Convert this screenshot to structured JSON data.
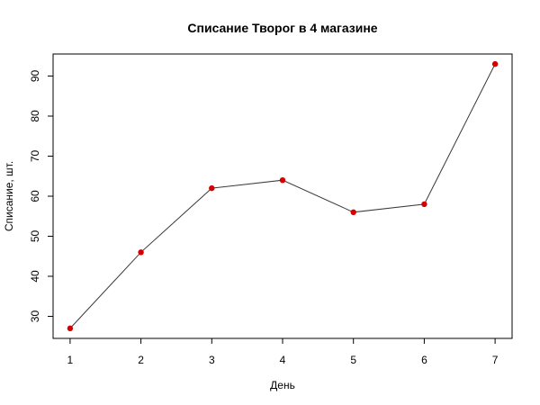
{
  "chart_data": {
    "type": "line",
    "title": "Списание Творог в 4 магазине",
    "xlabel": "День",
    "ylabel": "Списание, шт.",
    "x": [
      1,
      2,
      3,
      4,
      5,
      6,
      7
    ],
    "series": [
      {
        "values": [
          27,
          46,
          62,
          64,
          56,
          58,
          93
        ]
      }
    ],
    "xticks": [
      1,
      2,
      3,
      4,
      5,
      6,
      7
    ],
    "yticks": [
      30,
      40,
      50,
      60,
      70,
      80,
      90
    ],
    "xlim": [
      0.76,
      7.24
    ],
    "ylim": [
      24.5,
      95.5
    ],
    "grid": false,
    "line_color": "#3a3a3a",
    "point_color": "#d40000"
  }
}
